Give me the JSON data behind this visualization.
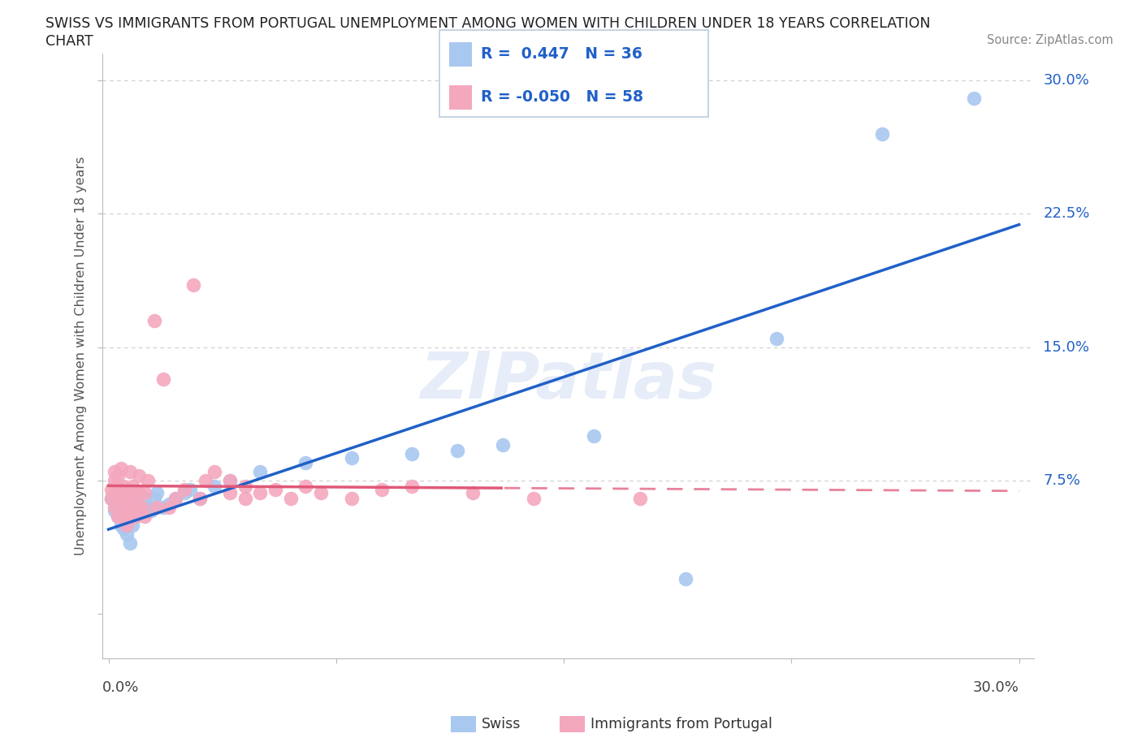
{
  "title_line1": "SWISS VS IMMIGRANTS FROM PORTUGAL UNEMPLOYMENT AMONG WOMEN WITH CHILDREN UNDER 18 YEARS CORRELATION",
  "title_line2": "CHART",
  "source": "Source: ZipAtlas.com",
  "ylabel": "Unemployment Among Women with Children Under 18 years",
  "xlim": [
    -0.002,
    0.305
  ],
  "ylim": [
    -0.025,
    0.315
  ],
  "watermark": "ZIPatlas",
  "legend_swiss_R": "0.447",
  "legend_swiss_N": "36",
  "legend_portugal_R": "-0.050",
  "legend_portugal_N": "58",
  "swiss_color": "#A8C8F0",
  "portugal_color": "#F4A8BE",
  "swiss_line_color": "#2060C8",
  "portugal_line_color": "#E05878",
  "background_color": "#FFFFFF",
  "grid_color": "#CCCCCC",
  "swiss_points": [
    [
      0.001,
      0.065
    ],
    [
      0.002,
      0.058
    ],
    [
      0.003,
      0.055
    ],
    [
      0.004,
      0.05
    ],
    [
      0.005,
      0.048
    ],
    [
      0.005,
      0.06
    ],
    [
      0.006,
      0.045
    ],
    [
      0.007,
      0.04
    ],
    [
      0.008,
      0.05
    ],
    [
      0.009,
      0.055
    ],
    [
      0.01,
      0.06
    ],
    [
      0.011,
      0.058
    ],
    [
      0.012,
      0.065
    ],
    [
      0.013,
      0.06
    ],
    [
      0.014,
      0.058
    ],
    [
      0.015,
      0.065
    ],
    [
      0.016,
      0.068
    ],
    [
      0.018,
      0.06
    ],
    [
      0.02,
      0.062
    ],
    [
      0.022,
      0.065
    ],
    [
      0.025,
      0.068
    ],
    [
      0.027,
      0.07
    ],
    [
      0.03,
      0.065
    ],
    [
      0.035,
      0.072
    ],
    [
      0.04,
      0.075
    ],
    [
      0.05,
      0.08
    ],
    [
      0.065,
      0.085
    ],
    [
      0.08,
      0.088
    ],
    [
      0.1,
      0.09
    ],
    [
      0.115,
      0.092
    ],
    [
      0.13,
      0.095
    ],
    [
      0.16,
      0.1
    ],
    [
      0.19,
      0.02
    ],
    [
      0.22,
      0.155
    ],
    [
      0.255,
      0.27
    ],
    [
      0.285,
      0.29
    ]
  ],
  "portugal_points": [
    [
      0.001,
      0.065
    ],
    [
      0.001,
      0.07
    ],
    [
      0.002,
      0.06
    ],
    [
      0.002,
      0.068
    ],
    [
      0.002,
      0.075
    ],
    [
      0.002,
      0.08
    ],
    [
      0.003,
      0.055
    ],
    [
      0.003,
      0.065
    ],
    [
      0.003,
      0.072
    ],
    [
      0.003,
      0.078
    ],
    [
      0.004,
      0.06
    ],
    [
      0.004,
      0.07
    ],
    [
      0.004,
      0.082
    ],
    [
      0.005,
      0.055
    ],
    [
      0.005,
      0.065
    ],
    [
      0.005,
      0.072
    ],
    [
      0.006,
      0.05
    ],
    [
      0.006,
      0.06
    ],
    [
      0.006,
      0.068
    ],
    [
      0.007,
      0.055
    ],
    [
      0.007,
      0.065
    ],
    [
      0.007,
      0.08
    ],
    [
      0.008,
      0.06
    ],
    [
      0.008,
      0.072
    ],
    [
      0.009,
      0.055
    ],
    [
      0.009,
      0.065
    ],
    [
      0.01,
      0.058
    ],
    [
      0.01,
      0.068
    ],
    [
      0.01,
      0.078
    ],
    [
      0.011,
      0.06
    ],
    [
      0.012,
      0.055
    ],
    [
      0.012,
      0.068
    ],
    [
      0.013,
      0.075
    ],
    [
      0.015,
      0.165
    ],
    [
      0.016,
      0.06
    ],
    [
      0.018,
      0.132
    ],
    [
      0.02,
      0.06
    ],
    [
      0.022,
      0.065
    ],
    [
      0.025,
      0.07
    ],
    [
      0.028,
      0.185
    ],
    [
      0.03,
      0.065
    ],
    [
      0.032,
      0.075
    ],
    [
      0.035,
      0.08
    ],
    [
      0.04,
      0.068
    ],
    [
      0.04,
      0.075
    ],
    [
      0.045,
      0.065
    ],
    [
      0.045,
      0.072
    ],
    [
      0.05,
      0.068
    ],
    [
      0.055,
      0.07
    ],
    [
      0.06,
      0.065
    ],
    [
      0.065,
      0.072
    ],
    [
      0.07,
      0.068
    ],
    [
      0.08,
      0.065
    ],
    [
      0.09,
      0.07
    ],
    [
      0.1,
      0.072
    ],
    [
      0.12,
      0.068
    ],
    [
      0.14,
      0.065
    ],
    [
      0.175,
      0.065
    ]
  ]
}
